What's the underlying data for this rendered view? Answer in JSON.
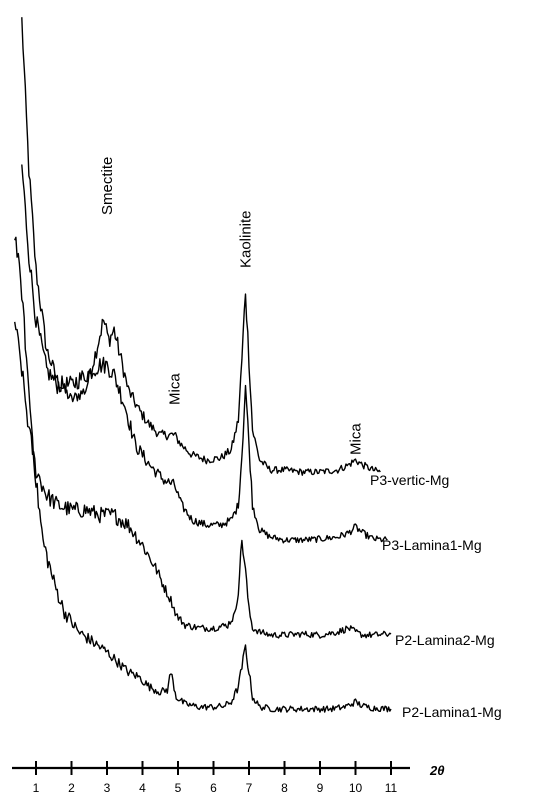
{
  "chart_data": {
    "type": "line",
    "xlabel": "2θ",
    "x_ticks": [
      1,
      2,
      3,
      4,
      5,
      6,
      7,
      8,
      9,
      10,
      11
    ],
    "xlim": [
      0.4,
      11.8
    ],
    "y_scale": "stacked-offset, no y axis shown",
    "annotations": [
      {
        "text": "Smectite",
        "x": 3.0
      },
      {
        "text": "Mica",
        "x": 4.9
      },
      {
        "text": "Kaolinite",
        "x": 6.9
      },
      {
        "text": "Mica",
        "x": 10.0
      }
    ],
    "series": [
      {
        "name": "P3-vertic-Mg",
        "offset": 480,
        "x": [
          0.6,
          0.8,
          1.0,
          1.3,
          1.6,
          2.0,
          2.4,
          2.7,
          2.9,
          3.05,
          3.2,
          3.4,
          3.6,
          3.9,
          4.2,
          4.5,
          4.75,
          4.9,
          5.1,
          5.4,
          5.8,
          6.2,
          6.5,
          6.7,
          6.8,
          6.9,
          7.0,
          7.1,
          7.3,
          7.6,
          8.0,
          8.5,
          9.0,
          9.5,
          9.8,
          10.0,
          10.2,
          10.5,
          10.7
        ],
        "values": [
          460,
          310,
          210,
          130,
          100,
          80,
          90,
          130,
          160,
          140,
          150,
          120,
          90,
          70,
          55,
          45,
          45,
          45,
          35,
          25,
          20,
          22,
          30,
          60,
          120,
          190,
          120,
          50,
          20,
          10,
          10,
          8,
          8,
          10,
          15,
          20,
          15,
          10,
          8
        ]
      },
      {
        "name": "P3-Lamina1-Mg",
        "offset": 545,
        "x": [
          0.6,
          0.8,
          1.0,
          1.3,
          1.6,
          2.0,
          2.4,
          2.8,
          3.0,
          3.2,
          3.5,
          3.8,
          4.2,
          4.6,
          4.9,
          5.1,
          5.4,
          5.8,
          6.2,
          6.5,
          6.7,
          6.8,
          6.9,
          7.0,
          7.1,
          7.3,
          7.6,
          8.0,
          8.5,
          9.0,
          9.5,
          9.8,
          10.0,
          10.2,
          10.5,
          10.9
        ],
        "values": [
          380,
          290,
          225,
          175,
          160,
          160,
          170,
          180,
          180,
          170,
          140,
          100,
          80,
          65,
          60,
          40,
          25,
          20,
          20,
          25,
          40,
          90,
          160,
          100,
          40,
          15,
          8,
          5,
          5,
          6,
          8,
          12,
          18,
          12,
          6,
          5
        ]
      },
      {
        "name": "P2-Lamina2-Mg",
        "offset": 640,
        "x": [
          0.4,
          0.6,
          0.8,
          1.0,
          1.3,
          1.6,
          2.0,
          2.4,
          2.8,
          3.2,
          3.6,
          4.0,
          4.4,
          4.65,
          4.8,
          4.95,
          5.2,
          5.6,
          6.0,
          6.4,
          6.6,
          6.7,
          6.8,
          6.9,
          7.0,
          7.1,
          7.3,
          7.6,
          8.0,
          8.5,
          9.0,
          9.5,
          9.8,
          10.0,
          10.2,
          10.5,
          11.0
        ],
        "values": [
          320,
          270,
          210,
          170,
          145,
          135,
          130,
          130,
          125,
          125,
          115,
          95,
          70,
          50,
          40,
          25,
          15,
          12,
          12,
          15,
          25,
          50,
          100,
          70,
          30,
          12,
          8,
          5,
          5,
          6,
          5,
          8,
          12,
          8,
          5,
          5,
          6
        ]
      },
      {
        "name": "P2-Lamina1-Mg",
        "offset": 712,
        "x": [
          0.4,
          0.6,
          0.8,
          1.0,
          1.2,
          1.5,
          1.8,
          2.2,
          2.6,
          3.0,
          3.3,
          3.6,
          3.9,
          4.2,
          4.5,
          4.7,
          4.8,
          4.95,
          5.2,
          5.6,
          6.0,
          6.3,
          6.5,
          6.7,
          6.8,
          6.9,
          7.0,
          7.1,
          7.3,
          7.7,
          8.2,
          8.8,
          9.3,
          9.7,
          10.0,
          10.2,
          10.5,
          11.0
        ],
        "values": [
          480,
          420,
          320,
          230,
          170,
          130,
          100,
          80,
          70,
          60,
          50,
          40,
          35,
          25,
          20,
          22,
          40,
          15,
          8,
          5,
          5,
          6,
          10,
          25,
          45,
          65,
          40,
          15,
          5,
          3,
          3,
          3,
          3,
          5,
          10,
          6,
          4,
          3
        ]
      }
    ]
  }
}
